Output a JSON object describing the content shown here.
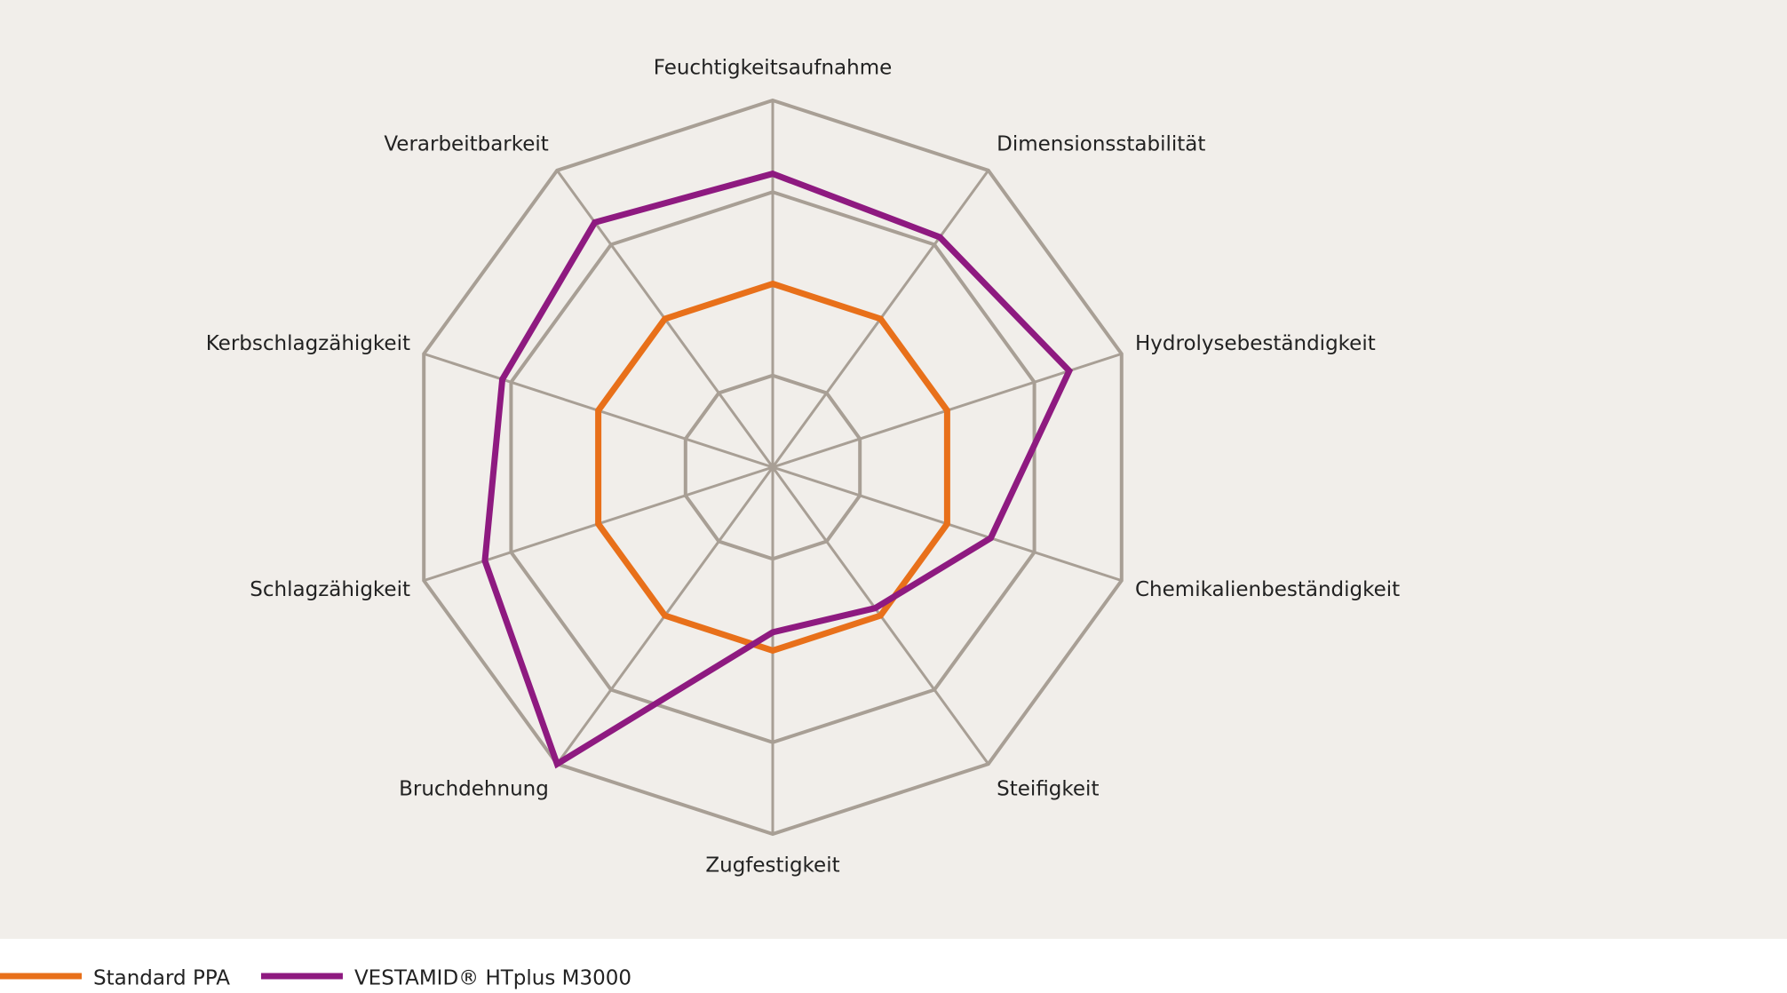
{
  "chart_data": {
    "type": "radar",
    "categories": [
      "Feuchtigkeitsaufnahme",
      "Dimensionsstabilität",
      "Hydrolysebeständigkeit",
      "Chemikalienbeständigkeit",
      "Steifigkeit",
      "Zugfestigkeit",
      "Bruchdehnung",
      "Schlagzähigkeit",
      "Kerbschlagzähigkeit",
      "Verarbeitbarkeit"
    ],
    "series": [
      {
        "name": "Standard PPA",
        "color": "#e8701a",
        "values": [
          2,
          2,
          2,
          2,
          2,
          2,
          2,
          2,
          2,
          2
        ]
      },
      {
        "name": "VESTAMID® HTplus M3000",
        "color": "#8e1a80",
        "values": [
          3.2,
          3.1,
          3.4,
          2.5,
          1.9,
          1.8,
          4,
          3.3,
          3.1,
          3.3
        ]
      }
    ],
    "rlim": [
      0,
      4
    ],
    "rticks": [
      1,
      2,
      3,
      4
    ],
    "grid_color": "#a89f95"
  }
}
